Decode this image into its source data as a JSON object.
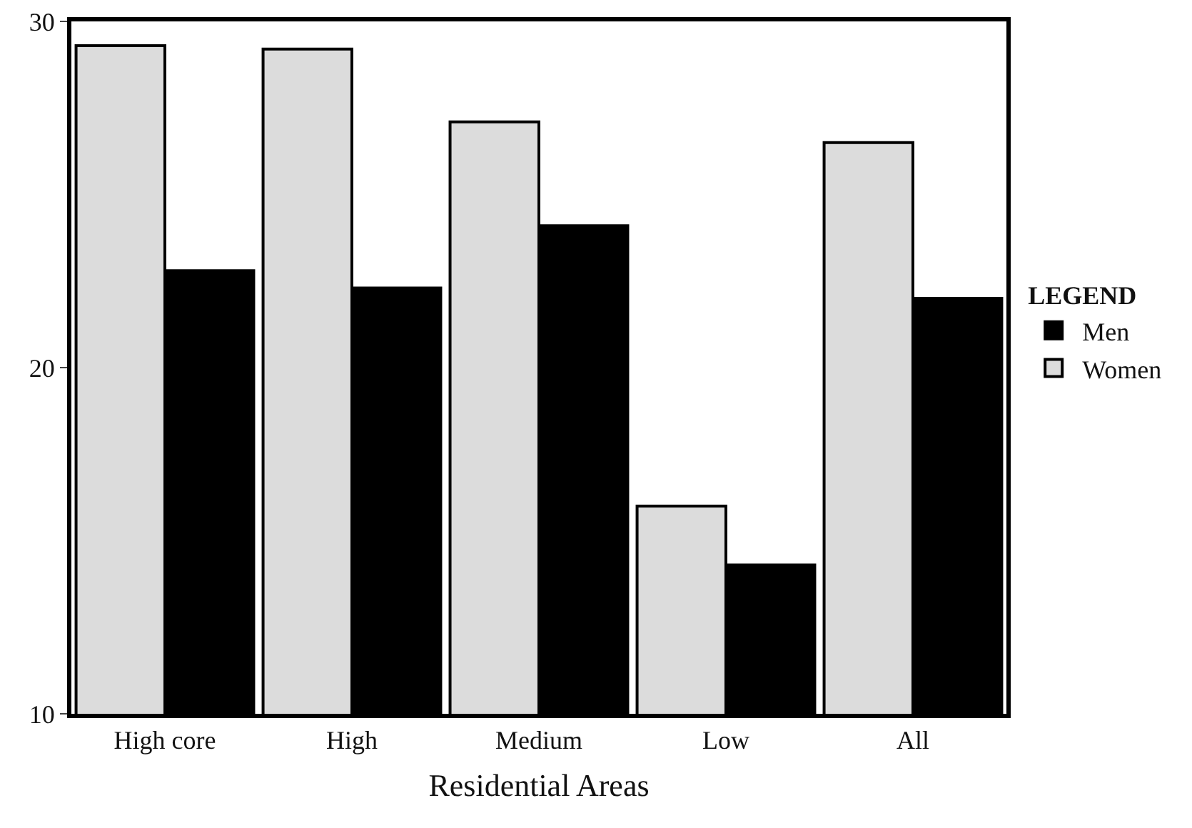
{
  "chart_data": {
    "type": "bar",
    "xlabel": "Residential Areas",
    "legend_title": "LEGEND",
    "categories": [
      "High core",
      "High",
      "Medium",
      "Low",
      "All"
    ],
    "series": [
      {
        "name": "Women",
        "color": "#dcdcdc",
        "values": [
          29.3,
          29.2,
          27.1,
          16,
          26.5
        ]
      },
      {
        "name": "Men",
        "color": "#000000",
        "values": [
          22.8,
          22.3,
          24.1,
          14.3,
          22
        ]
      }
    ],
    "ylim": [
      10,
      30
    ],
    "yticks": [
      10,
      20,
      30
    ],
    "grid": false,
    "legend": "right"
  }
}
